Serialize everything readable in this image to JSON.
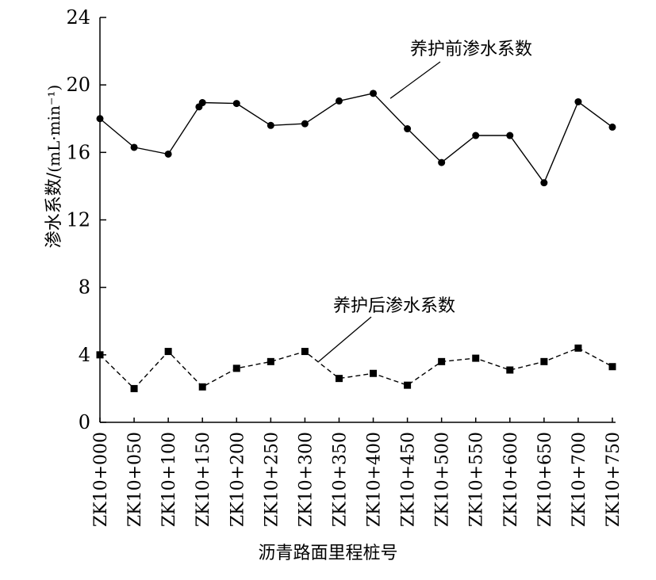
{
  "chart_data": {
    "type": "line",
    "categories": [
      "ZK10+000",
      "ZK10+050",
      "ZK10+100",
      "ZK10+150",
      "ZK10+200",
      "ZK10+250",
      "ZK10+300",
      "ZK10+350",
      "ZK10+400",
      "ZK10+450",
      "ZK10+500",
      "ZK10+550",
      "ZK10+600",
      "ZK10+650",
      "ZK10+700",
      "ZK10+750"
    ],
    "series": [
      {
        "name": "养护前渗水系数",
        "marker": "circle",
        "line_style": "solid",
        "points": [
          [
            0,
            18.0
          ],
          [
            50,
            16.3
          ],
          [
            100,
            15.9
          ],
          [
            145,
            18.7
          ],
          [
            150,
            18.95
          ],
          [
            200,
            18.9
          ],
          [
            250,
            17.6
          ],
          [
            300,
            17.7
          ],
          [
            350,
            19.05
          ],
          [
            400,
            19.5
          ],
          [
            450,
            17.4
          ],
          [
            500,
            15.4
          ],
          [
            550,
            17.0
          ],
          [
            600,
            17.0
          ],
          [
            650,
            14.2
          ],
          [
            700,
            19.0
          ],
          [
            750,
            17.5
          ]
        ]
      },
      {
        "name": "养护后渗水系数",
        "marker": "square",
        "line_style": "dashed",
        "points": [
          [
            0,
            4.0
          ],
          [
            50,
            2.0
          ],
          [
            100,
            4.2
          ],
          [
            150,
            2.1
          ],
          [
            200,
            3.2
          ],
          [
            250,
            3.6
          ],
          [
            300,
            4.2
          ],
          [
            350,
            2.6
          ],
          [
            400,
            2.9
          ],
          [
            450,
            2.2
          ],
          [
            500,
            3.6
          ],
          [
            550,
            3.8
          ],
          [
            600,
            3.1
          ],
          [
            650,
            3.6
          ],
          [
            700,
            4.4
          ],
          [
            750,
            3.3
          ]
        ]
      }
    ],
    "xlabel": "沥青路面里程桩号",
    "ylabel": "渗水系数/",
    "ylabel_unit": "(mL·min⁻¹)",
    "ylim": [
      0,
      24
    ],
    "yticks": [
      "0",
      "4",
      "8",
      "12",
      "16",
      "20",
      "24"
    ],
    "grid": false,
    "legend": "annotations"
  }
}
